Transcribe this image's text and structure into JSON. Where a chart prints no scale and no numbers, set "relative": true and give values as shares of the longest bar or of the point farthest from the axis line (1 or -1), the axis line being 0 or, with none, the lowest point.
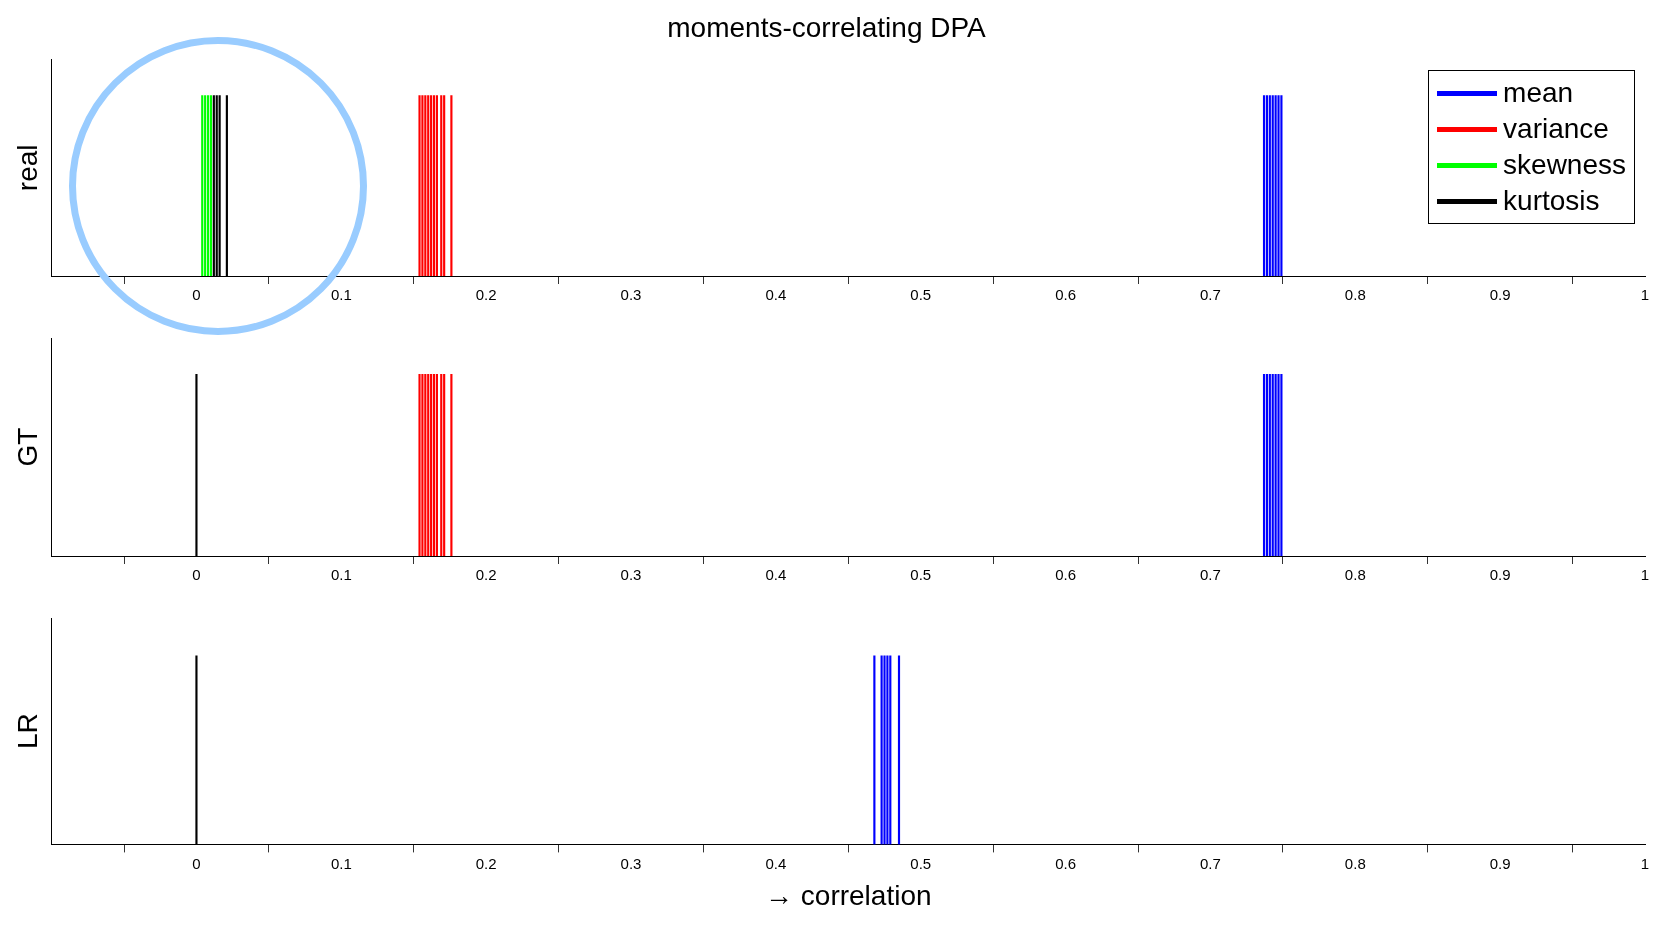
{
  "chart_data": [
    {
      "type": "bar",
      "title": "moments-correlating DPA",
      "ylabel": "real",
      "relative": true,
      "xlim": [
        -0.1,
        1
      ],
      "xticks": [
        0,
        0.1,
        0.2,
        0.3,
        0.4,
        0.5,
        0.6,
        0.7,
        0.8,
        0.9,
        1
      ],
      "grid": false,
      "legend": "top right",
      "series": [
        {
          "name": "mean",
          "color": "#0000ff",
          "x": [
            0.737,
            0.739,
            0.741,
            0.743,
            0.745,
            0.747,
            0.749
          ],
          "values": [
            1,
            1,
            1,
            1,
            1,
            1,
            1
          ]
        },
        {
          "name": "variance",
          "color": "#ff0000",
          "x": [
            0.154,
            0.156,
            0.158,
            0.16,
            0.162,
            0.164,
            0.166,
            0.169,
            0.171,
            0.176
          ],
          "values": [
            1,
            1,
            1,
            1,
            1,
            1,
            1,
            1,
            1,
            1
          ]
        },
        {
          "name": "skewness",
          "color": "#00ff00",
          "x": [
            0.004,
            0.006,
            0.008,
            0.01
          ],
          "values": [
            1,
            1,
            1,
            1
          ]
        },
        {
          "name": "kurtosis",
          "color": "#000000",
          "x": [
            0.012,
            0.014,
            0.016,
            0.021
          ],
          "values": [
            1,
            1,
            1,
            1
          ]
        }
      ]
    },
    {
      "type": "bar",
      "ylabel": "GT",
      "relative": true,
      "xlim": [
        -0.1,
        1
      ],
      "xticks": [
        0,
        0.1,
        0.2,
        0.3,
        0.4,
        0.5,
        0.6,
        0.7,
        0.8,
        0.9,
        1
      ],
      "grid": false,
      "series": [
        {
          "color": "#0000ff",
          "x": [
            0.737,
            0.739,
            0.741,
            0.743,
            0.745,
            0.747,
            0.749
          ],
          "values": [
            1,
            1,
            1,
            1,
            1,
            1,
            1
          ]
        },
        {
          "color": "#ff0000",
          "x": [
            0.154,
            0.156,
            0.158,
            0.16,
            0.162,
            0.164,
            0.166,
            0.169,
            0.171,
            0.176
          ],
          "values": [
            1,
            1,
            1,
            1,
            1,
            1,
            1,
            1,
            1,
            1
          ]
        },
        {
          "color": "#000000",
          "x": [
            0
          ],
          "values": [
            1
          ]
        }
      ]
    },
    {
      "type": "bar",
      "ylabel": "LR",
      "xlabel": "→ correlation",
      "relative": true,
      "xlim": [
        -0.1,
        1
      ],
      "xticks": [
        0,
        0.1,
        0.2,
        0.3,
        0.4,
        0.5,
        0.6,
        0.7,
        0.8,
        0.9,
        1
      ],
      "grid": false,
      "series": [
        {
          "color": "#0000ff",
          "x": [
            0.468,
            0.473,
            0.475,
            0.477,
            0.479,
            0.485
          ],
          "values": [
            1,
            1,
            1,
            1,
            1,
            1
          ]
        },
        {
          "color": "#000000",
          "x": [
            0
          ],
          "values": [
            1
          ]
        }
      ]
    }
  ]
}
